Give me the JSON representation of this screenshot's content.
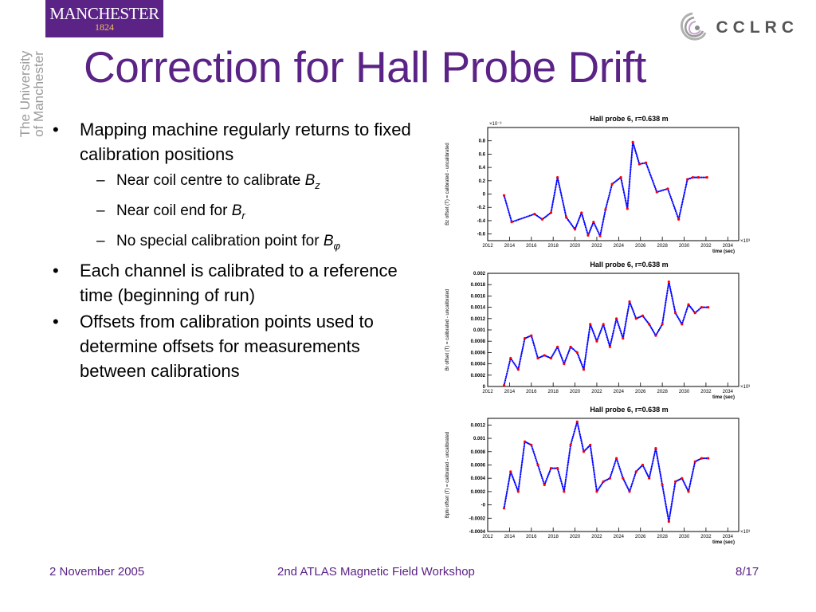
{
  "header": {
    "manchester_logo": {
      "name": "MANCHESTER",
      "year": "1824"
    },
    "university_text": [
      "The University",
      "of Manchester"
    ],
    "cclrc_logo": {
      "text": "CCLRC",
      "icon": "cclrc-swirl-icon"
    }
  },
  "title": "Correction for Hall Probe Drift",
  "bullets": [
    {
      "text": "Mapping machine regularly returns to fixed calibration positions",
      "sub": [
        {
          "text": "Near coil centre to calibrate ",
          "symbol": "B",
          "subscript": "z"
        },
        {
          "text": "Near coil end for ",
          "symbol": "B",
          "subscript": "r"
        },
        {
          "text": "No special calibration point for ",
          "symbol": "B",
          "subscript": "φ"
        }
      ]
    },
    {
      "text": "Each channel is calibrated to a reference time (beginning of run)"
    },
    {
      "text": "Offsets from calibration points used to determine offsets for measurements between calibrations"
    }
  ],
  "footer": {
    "date": "2 November 2005",
    "event": "2nd ATLAS Magnetic Field Workshop",
    "page": "8/17"
  },
  "colors": {
    "purple": "#5b2386",
    "marker": "#ff0000",
    "line": "#0000ff"
  },
  "chart_data": [
    {
      "type": "scatter",
      "title": "Hall probe 6, r=0.638 m",
      "ylabel": "Bz offset (T) = calibrated - uncalibrated",
      "xlabel": "time (sec)",
      "x_exponent": "×10³",
      "y_exponent": "×10⁻³",
      "xlim": [
        2012,
        2035
      ],
      "ylim": [
        -0.7,
        1.0
      ],
      "xticks": [
        2012,
        2014,
        2016,
        2018,
        2020,
        2022,
        2024,
        2026,
        2028,
        2030,
        2032,
        2034
      ],
      "yticks": [
        -0.6,
        -0.4,
        -0.2,
        0,
        0.2,
        0.4,
        0.6,
        0.8
      ],
      "ytick_labels": [
        "-0.6",
        "-0.4",
        "-0.2",
        "0",
        "0.2",
        "0.4",
        "0.6",
        "0.8"
      ],
      "x": [
        2013.5,
        2014.2,
        2016.3,
        2017.0,
        2017.8,
        2018.4,
        2019.2,
        2020.0,
        2020.6,
        2021.2,
        2021.7,
        2022.3,
        2022.8,
        2023.4,
        2024.2,
        2024.8,
        2025.3,
        2025.9,
        2026.5,
        2027.5,
        2028.5,
        2029.5,
        2030.3,
        2030.8,
        2031.3,
        2032.1
      ],
      "y": [
        -0.02,
        -0.42,
        -0.3,
        -0.38,
        -0.28,
        0.25,
        -0.35,
        -0.53,
        -0.28,
        -0.62,
        -0.42,
        -0.63,
        -0.23,
        0.15,
        0.25,
        -0.22,
        0.78,
        0.45,
        0.47,
        0.03,
        0.08,
        -0.38,
        0.22,
        0.25,
        0.25,
        0.25
      ]
    },
    {
      "type": "scatter",
      "title": "Hall probe 6, r=0.638 m",
      "ylabel": "Br offset (T) = calibrated - uncalibrated",
      "xlabel": "time (sec)",
      "x_exponent": "×10³",
      "xlim": [
        2012,
        2035
      ],
      "ylim": [
        0,
        0.002
      ],
      "xticks": [
        2012,
        2014,
        2016,
        2018,
        2020,
        2022,
        2024,
        2026,
        2028,
        2030,
        2032,
        2034
      ],
      "yticks": [
        0,
        0.0002,
        0.0004,
        0.0006,
        0.0008,
        0.001,
        0.0012,
        0.0014,
        0.0016,
        0.0018,
        0.002
      ],
      "ytick_labels": [
        "0",
        "0.0002",
        "0.0004",
        "0.0006",
        "0.0008",
        "0.001",
        "0.0012",
        "0.0014",
        "0.0016",
        "0.0018",
        "0.002"
      ],
      "x": [
        2013.5,
        2014.1,
        2014.8,
        2015.4,
        2016.0,
        2016.6,
        2017.2,
        2017.8,
        2018.4,
        2019.0,
        2019.6,
        2020.2,
        2020.8,
        2021.4,
        2022.0,
        2022.6,
        2023.2,
        2023.8,
        2024.4,
        2025.0,
        2025.6,
        2026.2,
        2026.8,
        2027.4,
        2028.0,
        2028.6,
        2029.2,
        2029.8,
        2030.4,
        2031.0,
        2031.6,
        2032.2
      ],
      "y": [
        2e-05,
        0.0005,
        0.0003,
        0.00085,
        0.0009,
        0.0005,
        0.00055,
        0.0005,
        0.0007,
        0.0004,
        0.0007,
        0.0006,
        0.0003,
        0.0011,
        0.0008,
        0.0011,
        0.0007,
        0.0012,
        0.00085,
        0.0015,
        0.0012,
        0.00125,
        0.0011,
        0.0009,
        0.0011,
        0.00185,
        0.0013,
        0.0011,
        0.00145,
        0.0013,
        0.0014,
        0.0014
      ]
    },
    {
      "type": "scatter",
      "title": "Hall probe 6, r=0.638 m",
      "ylabel": "Bphi offset (T) = calibrated - uncalibrated",
      "xlabel": "time (sec)",
      "x_exponent": "×10³",
      "xlim": [
        2012,
        2035
      ],
      "ylim": [
        -0.0004,
        0.0013
      ],
      "xticks": [
        2012,
        2014,
        2016,
        2018,
        2020,
        2022,
        2024,
        2026,
        2028,
        2030,
        2032,
        2034
      ],
      "yticks": [
        -0.0004,
        -0.0002,
        0,
        0.0002,
        0.0004,
        0.0006,
        0.0008,
        0.001,
        0.0012
      ],
      "ytick_labels": [
        "-0.0004",
        "-0.0002",
        "-0",
        "0.0002",
        "0.0004",
        "0.0006",
        "0.0008",
        "0.001",
        "0.0012"
      ],
      "x": [
        2013.5,
        2014.1,
        2014.8,
        2015.4,
        2016.0,
        2016.6,
        2017.2,
        2017.8,
        2018.4,
        2019.0,
        2019.6,
        2020.2,
        2020.8,
        2021.4,
        2022.0,
        2022.6,
        2023.2,
        2023.8,
        2024.4,
        2025.0,
        2025.6,
        2026.2,
        2026.8,
        2027.4,
        2028.0,
        2028.6,
        2029.2,
        2029.8,
        2030.4,
        2031.0,
        2031.6,
        2032.2
      ],
      "y": [
        -5e-05,
        0.0005,
        0.0002,
        0.00095,
        0.0009,
        0.0006,
        0.0003,
        0.00055,
        0.00055,
        0.0002,
        0.0009,
        0.00125,
        0.0008,
        0.0009,
        0.0002,
        0.00035,
        0.0004,
        0.0007,
        0.0004,
        0.0002,
        0.0005,
        0.0006,
        0.0004,
        0.00085,
        0.0003,
        -0.00025,
        0.00035,
        0.0004,
        0.0002,
        0.00065,
        0.0007,
        0.0007
      ]
    }
  ]
}
